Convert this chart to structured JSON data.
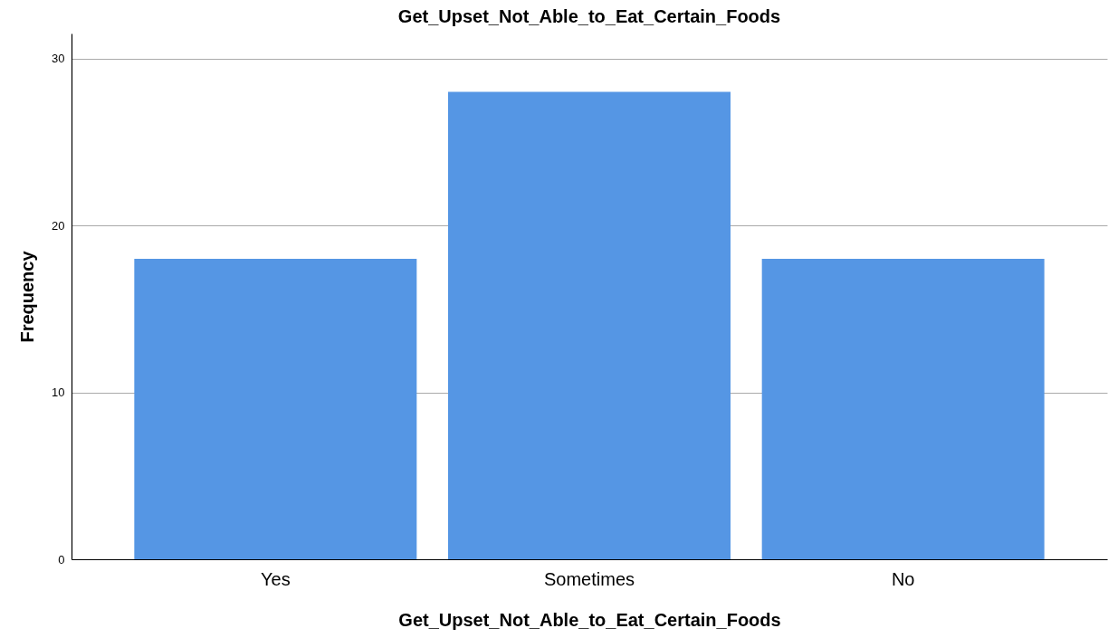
{
  "chart_data": {
    "type": "bar",
    "title": "Get_Upset_Not_Able_to_Eat_Certain_Foods",
    "xlabel": "Get_Upset_Not_Able_to_Eat_Certain_Foods",
    "ylabel": "Frequency",
    "categories": [
      "Yes",
      "Sometimes",
      "No"
    ],
    "series": [
      {
        "color": "#5596e4",
        "values": [
          18,
          28,
          18
        ]
      }
    ],
    "ylim": [
      0,
      31.5
    ],
    "yticks": [
      0,
      10,
      20,
      30
    ],
    "grid": "y"
  }
}
